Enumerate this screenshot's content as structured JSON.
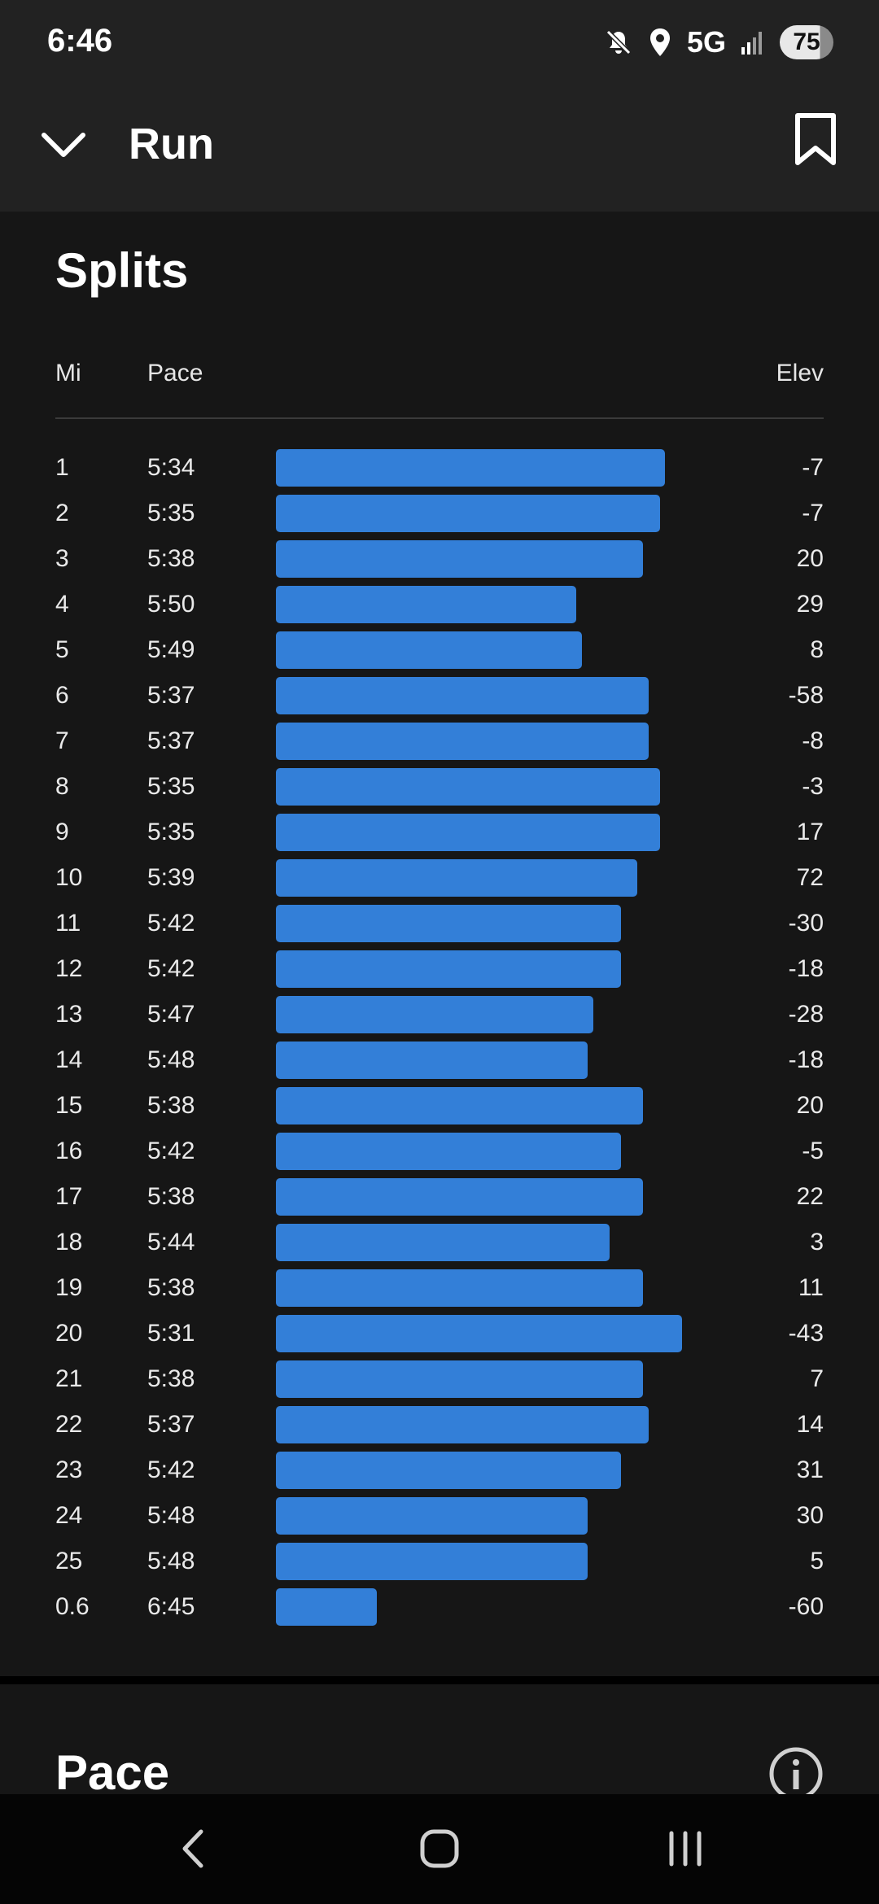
{
  "status_bar": {
    "time": "6:46",
    "network": "5G",
    "battery": "75",
    "icons": [
      "mute-icon",
      "location-icon",
      "signal-icon",
      "battery-icon"
    ]
  },
  "header": {
    "title": "Run",
    "icons": [
      "chevron-down-icon",
      "bookmark-icon"
    ]
  },
  "splits": {
    "title": "Splits",
    "columns": {
      "mi": "Mi",
      "pace": "Pace",
      "elev": "Elev"
    },
    "bar_color": "#337fd8",
    "pace_bar_scale_note_max_pace": "5:31",
    "rows": [
      {
        "mi": "1",
        "pace": "5:34",
        "elev": "-7"
      },
      {
        "mi": "2",
        "pace": "5:35",
        "elev": "-7"
      },
      {
        "mi": "3",
        "pace": "5:38",
        "elev": "20"
      },
      {
        "mi": "4",
        "pace": "5:50",
        "elev": "29"
      },
      {
        "mi": "5",
        "pace": "5:49",
        "elev": "8"
      },
      {
        "mi": "6",
        "pace": "5:37",
        "elev": "-58"
      },
      {
        "mi": "7",
        "pace": "5:37",
        "elev": "-8"
      },
      {
        "mi": "8",
        "pace": "5:35",
        "elev": "-3"
      },
      {
        "mi": "9",
        "pace": "5:35",
        "elev": "17"
      },
      {
        "mi": "10",
        "pace": "5:39",
        "elev": "72"
      },
      {
        "mi": "11",
        "pace": "5:42",
        "elev": "-30"
      },
      {
        "mi": "12",
        "pace": "5:42",
        "elev": "-18"
      },
      {
        "mi": "13",
        "pace": "5:47",
        "elev": "-28"
      },
      {
        "mi": "14",
        "pace": "5:48",
        "elev": "-18"
      },
      {
        "mi": "15",
        "pace": "5:38",
        "elev": "20"
      },
      {
        "mi": "16",
        "pace": "5:42",
        "elev": "-5"
      },
      {
        "mi": "17",
        "pace": "5:38",
        "elev": "22"
      },
      {
        "mi": "18",
        "pace": "5:44",
        "elev": "3"
      },
      {
        "mi": "19",
        "pace": "5:38",
        "elev": "11"
      },
      {
        "mi": "20",
        "pace": "5:31",
        "elev": "-43"
      },
      {
        "mi": "21",
        "pace": "5:38",
        "elev": "7"
      },
      {
        "mi": "22",
        "pace": "5:37",
        "elev": "14"
      },
      {
        "mi": "23",
        "pace": "5:42",
        "elev": "31"
      },
      {
        "mi": "24",
        "pace": "5:48",
        "elev": "30"
      },
      {
        "mi": "25",
        "pace": "5:48",
        "elev": "5"
      },
      {
        "mi": "0.6",
        "pace": "6:45",
        "elev": "-60"
      }
    ]
  },
  "pace_section": {
    "title": "Pace",
    "icons": [
      "info-icon"
    ]
  },
  "nav_bar": {
    "icons": [
      "back-icon",
      "home-icon",
      "recent-apps-icon"
    ]
  }
}
